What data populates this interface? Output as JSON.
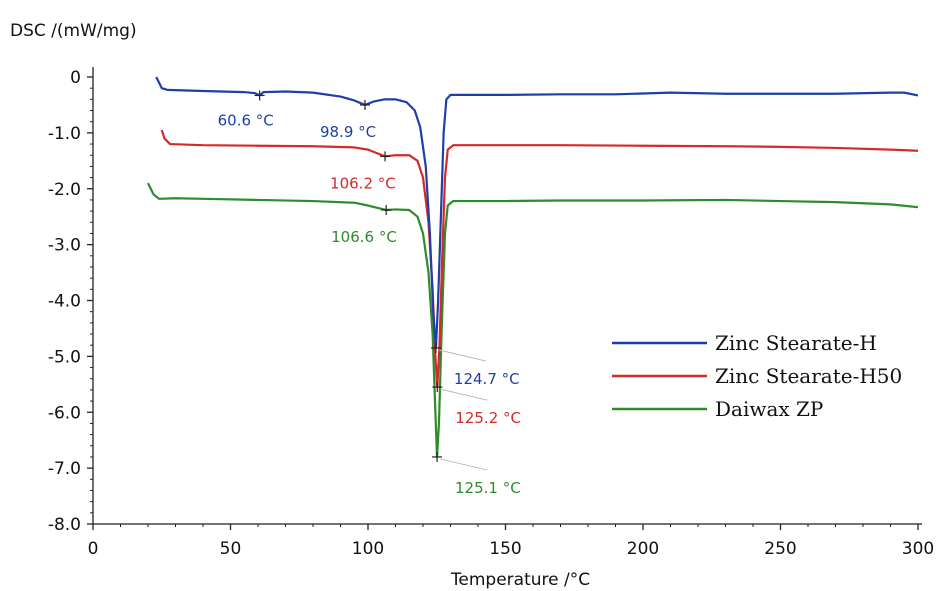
{
  "chart_data": {
    "type": "line",
    "ylabel": "DSC /(mW/mg)",
    "xlabel": "Temperature /°C",
    "xlim": [
      0,
      300
    ],
    "ylim": [
      -8.0,
      0
    ],
    "x_ticks": [
      0,
      50,
      100,
      150,
      200,
      250,
      300
    ],
    "x_tick_labels": [
      "0",
      "50",
      "100",
      "150",
      "200",
      "250",
      "300"
    ],
    "y_ticks": [
      0,
      -1,
      -2,
      -3,
      -4,
      -5,
      -6,
      -7,
      -8
    ],
    "y_tick_labels": [
      "0",
      "-1.0",
      "-2.0",
      "-3.0",
      "-4.0",
      "-5.0",
      "-6.0",
      "-7.0",
      "-8.0"
    ],
    "grid": false,
    "legend_position": "right-middle",
    "series": [
      {
        "name": "Zinc Stearate-H",
        "color": "#1f3fa8",
        "points": [
          [
            23,
            0.0
          ],
          [
            25,
            -0.2
          ],
          [
            27,
            -0.23
          ],
          [
            40,
            -0.25
          ],
          [
            55,
            -0.27
          ],
          [
            59,
            -0.29
          ],
          [
            60.6,
            -0.33
          ],
          [
            62,
            -0.27
          ],
          [
            70,
            -0.26
          ],
          [
            80,
            -0.28
          ],
          [
            90,
            -0.35
          ],
          [
            95,
            -0.42
          ],
          [
            98.9,
            -0.5
          ],
          [
            102,
            -0.44
          ],
          [
            106,
            -0.4
          ],
          [
            110,
            -0.4
          ],
          [
            114,
            -0.45
          ],
          [
            117,
            -0.6
          ],
          [
            119,
            -0.9
          ],
          [
            121,
            -1.6
          ],
          [
            122.5,
            -2.8
          ],
          [
            123.7,
            -4.2
          ],
          [
            124.7,
            -4.85
          ],
          [
            125.5,
            -4.0
          ],
          [
            126.5,
            -2.5
          ],
          [
            127.5,
            -1.0
          ],
          [
            128.5,
            -0.4
          ],
          [
            130,
            -0.32
          ],
          [
            150,
            -0.32
          ],
          [
            170,
            -0.31
          ],
          [
            190,
            -0.31
          ],
          [
            210,
            -0.28
          ],
          [
            230,
            -0.3
          ],
          [
            250,
            -0.3
          ],
          [
            270,
            -0.3
          ],
          [
            290,
            -0.28
          ],
          [
            295,
            -0.28
          ],
          [
            300,
            -0.33
          ]
        ]
      },
      {
        "name": "Zinc Stearate-H50",
        "color": "#d42a2a",
        "points": [
          [
            25,
            -0.95
          ],
          [
            26,
            -1.1
          ],
          [
            28,
            -1.2
          ],
          [
            40,
            -1.22
          ],
          [
            60,
            -1.23
          ],
          [
            80,
            -1.24
          ],
          [
            95,
            -1.26
          ],
          [
            100,
            -1.3
          ],
          [
            106.2,
            -1.42
          ],
          [
            110,
            -1.4
          ],
          [
            115,
            -1.4
          ],
          [
            118,
            -1.5
          ],
          [
            120,
            -1.8
          ],
          [
            122,
            -2.6
          ],
          [
            123.5,
            -3.8
          ],
          [
            124.5,
            -5.0
          ],
          [
            125.2,
            -5.55
          ],
          [
            126,
            -4.8
          ],
          [
            127,
            -3.2
          ],
          [
            128,
            -1.8
          ],
          [
            129,
            -1.3
          ],
          [
            131,
            -1.22
          ],
          [
            150,
            -1.22
          ],
          [
            170,
            -1.22
          ],
          [
            200,
            -1.23
          ],
          [
            230,
            -1.24
          ],
          [
            250,
            -1.25
          ],
          [
            270,
            -1.27
          ],
          [
            290,
            -1.3
          ],
          [
            300,
            -1.32
          ]
        ]
      },
      {
        "name": "Daiwax ZP",
        "color": "#2e8b2e",
        "points": [
          [
            20,
            -1.9
          ],
          [
            22,
            -2.1
          ],
          [
            24,
            -2.18
          ],
          [
            30,
            -2.17
          ],
          [
            40,
            -2.18
          ],
          [
            60,
            -2.2
          ],
          [
            80,
            -2.22
          ],
          [
            95,
            -2.25
          ],
          [
            100,
            -2.3
          ],
          [
            106.6,
            -2.38
          ],
          [
            110,
            -2.37
          ],
          [
            115,
            -2.38
          ],
          [
            118,
            -2.5
          ],
          [
            120,
            -2.8
          ],
          [
            122,
            -3.5
          ],
          [
            123.5,
            -4.6
          ],
          [
            124.5,
            -6.0
          ],
          [
            125.1,
            -6.8
          ],
          [
            125.8,
            -6.2
          ],
          [
            126.8,
            -4.5
          ],
          [
            128,
            -2.8
          ],
          [
            129,
            -2.3
          ],
          [
            131,
            -2.22
          ],
          [
            150,
            -2.22
          ],
          [
            170,
            -2.21
          ],
          [
            200,
            -2.21
          ],
          [
            230,
            -2.2
          ],
          [
            250,
            -2.22
          ],
          [
            270,
            -2.24
          ],
          [
            290,
            -2.28
          ],
          [
            300,
            -2.33
          ]
        ]
      }
    ],
    "annotations": [
      {
        "series": 0,
        "x": 60.6,
        "y": -0.33,
        "text": "60.6 °C",
        "color": "#1f3fa8",
        "anchor": "below-left"
      },
      {
        "series": 0,
        "x": 98.9,
        "y": -0.5,
        "text": "98.9 °C",
        "color": "#1f3fa8",
        "anchor": "below-right"
      },
      {
        "series": 1,
        "x": 106.2,
        "y": -1.42,
        "text": "106.2 °C",
        "color": "#d42a2a",
        "anchor": "below"
      },
      {
        "series": 2,
        "x": 106.6,
        "y": -2.38,
        "text": "106.6 °C",
        "color": "#2e8b2e",
        "anchor": "below"
      },
      {
        "series": 0,
        "x": 124.7,
        "y": -4.85,
        "text": "124.7 °C",
        "color": "#1f3fa8",
        "anchor": "leader"
      },
      {
        "series": 1,
        "x": 125.2,
        "y": -5.55,
        "text": "125.2 °C",
        "color": "#d42a2a",
        "anchor": "leader"
      },
      {
        "series": 2,
        "x": 125.1,
        "y": -6.8,
        "text": "125.1 °C",
        "color": "#2e8b2e",
        "anchor": "leader"
      }
    ]
  }
}
